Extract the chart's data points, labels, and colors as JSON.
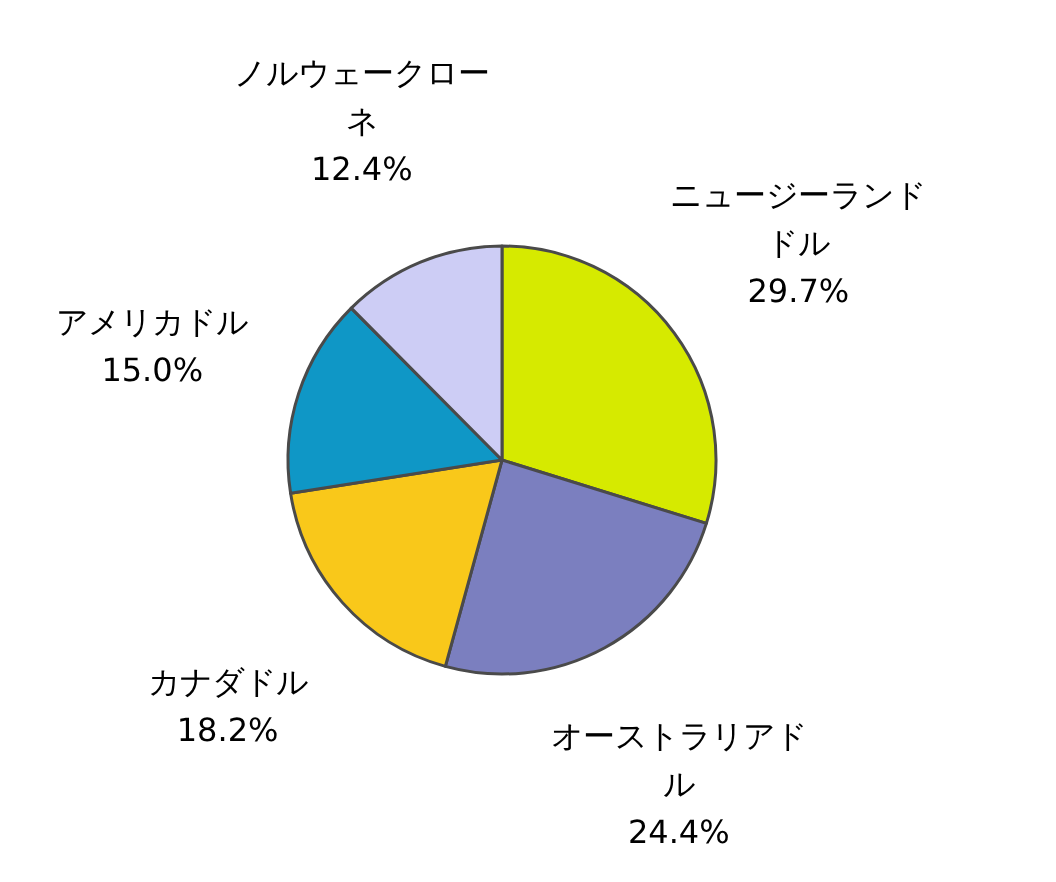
{
  "chart_data": {
    "type": "pie",
    "categories": [
      "ニュージーランドドル",
      "オーストラリアドル",
      "カナダドル",
      "アメリカドル",
      "ノルウェークローネ"
    ],
    "values": [
      29.7,
      24.4,
      18.2,
      15.0,
      12.4
    ],
    "value_labels": [
      "29.7%",
      "24.4%",
      "18.2%",
      "15.0%",
      "12.4%"
    ],
    "colors": [
      "#d6ea00",
      "#7b7fbf",
      "#f9c81a",
      "#0f97c6",
      "#cdcdf5"
    ]
  }
}
